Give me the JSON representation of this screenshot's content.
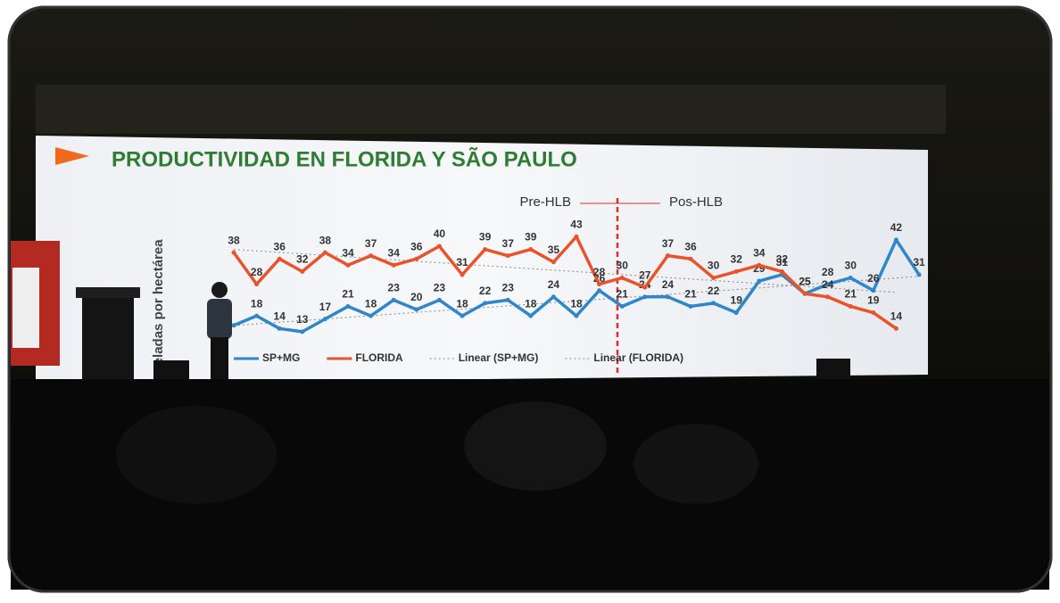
{
  "chart_data": {
    "type": "line",
    "title": "PRODUCTIVIDAD EN FLORIDA Y SÃO PAULO",
    "y_label": "oneladas por hectárea",
    "annotations": [
      "Pre-HLB",
      "Pos-HLB"
    ],
    "series": [
      {
        "name": "SP+MG",
        "color": "#2f86c9",
        "trendline": "Linear (SP+MG)",
        "values": [
          15,
          18,
          14,
          13,
          17,
          21,
          18,
          23,
          20,
          23,
          18,
          22,
          23,
          18,
          24,
          18,
          26,
          21,
          24,
          24,
          21,
          22,
          19,
          29,
          31,
          25,
          28,
          30,
          26,
          42,
          31
        ],
        "value_labels": [
          null,
          "18",
          "14",
          "13",
          "17",
          "21",
          "18",
          "23",
          "20",
          "23",
          "18",
          "22",
          "23",
          "18",
          "24",
          "18",
          "26",
          "21",
          "24",
          "24",
          "21",
          "22",
          "19",
          "29",
          "31",
          "25",
          "28",
          "30",
          "26",
          "42",
          "31"
        ]
      },
      {
        "name": "FLORIDA",
        "color": "#e8532b",
        "trendline": "Linear (FLORIDA)",
        "values": [
          38,
          28,
          36,
          32,
          38,
          34,
          37,
          34,
          36,
          40,
          31,
          39,
          37,
          39,
          35,
          43,
          28,
          30,
          27,
          37,
          36,
          30,
          32,
          34,
          32,
          25,
          24,
          21,
          19,
          14,
          null
        ]
      }
    ]
  }
}
